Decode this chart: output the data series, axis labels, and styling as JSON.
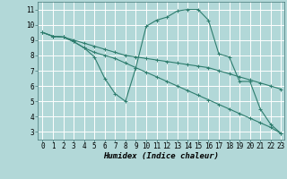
{
  "xlabel": "Humidex (Indice chaleur)",
  "ylabel": "",
  "xlim": [
    -0.5,
    23.3
  ],
  "ylim": [
    2.5,
    11.5
  ],
  "xticks": [
    0,
    1,
    2,
    3,
    4,
    5,
    6,
    7,
    8,
    9,
    10,
    11,
    12,
    13,
    14,
    15,
    16,
    17,
    18,
    19,
    20,
    21,
    22,
    23
  ],
  "yticks": [
    3,
    4,
    5,
    6,
    7,
    8,
    9,
    10,
    11
  ],
  "background_color": "#b2d8d8",
  "grid_color": "#ffffff",
  "line_color": "#2e7d6e",
  "line1_x": [
    0,
    1,
    2,
    3,
    4,
    5,
    6,
    7,
    8,
    9,
    10,
    11,
    12,
    13,
    14,
    15,
    16,
    17,
    18,
    19,
    20,
    21,
    22,
    23
  ],
  "line1_y": [
    9.5,
    9.25,
    9.2,
    9.0,
    8.8,
    8.6,
    8.4,
    8.2,
    8.0,
    7.9,
    7.8,
    7.7,
    7.6,
    7.5,
    7.4,
    7.3,
    7.2,
    7.0,
    6.8,
    6.6,
    6.4,
    6.2,
    6.0,
    5.8
  ],
  "line2_x": [
    0,
    1,
    2,
    3,
    4,
    5,
    6,
    7,
    8,
    9,
    10,
    11,
    12,
    13,
    14,
    15,
    16,
    17,
    18,
    19,
    20,
    21,
    22,
    23
  ],
  "line2_y": [
    9.5,
    9.25,
    9.2,
    8.9,
    8.5,
    7.9,
    6.5,
    5.5,
    5.0,
    7.2,
    9.9,
    10.3,
    10.5,
    10.9,
    11.0,
    11.0,
    10.3,
    8.1,
    7.9,
    6.3,
    6.3,
    4.5,
    3.5,
    2.9
  ],
  "line3_x": [
    0,
    1,
    2,
    3,
    4,
    5,
    6,
    7,
    8,
    9,
    10,
    11,
    12,
    13,
    14,
    15,
    16,
    17,
    18,
    19,
    20,
    21,
    22,
    23
  ],
  "line3_y": [
    9.5,
    9.25,
    9.2,
    8.9,
    8.5,
    8.2,
    8.0,
    7.8,
    7.5,
    7.2,
    6.9,
    6.6,
    6.3,
    6.0,
    5.7,
    5.4,
    5.1,
    4.8,
    4.5,
    4.2,
    3.9,
    3.6,
    3.3,
    2.9
  ],
  "tick_fontsize": 5.5,
  "xlabel_fontsize": 6.5
}
